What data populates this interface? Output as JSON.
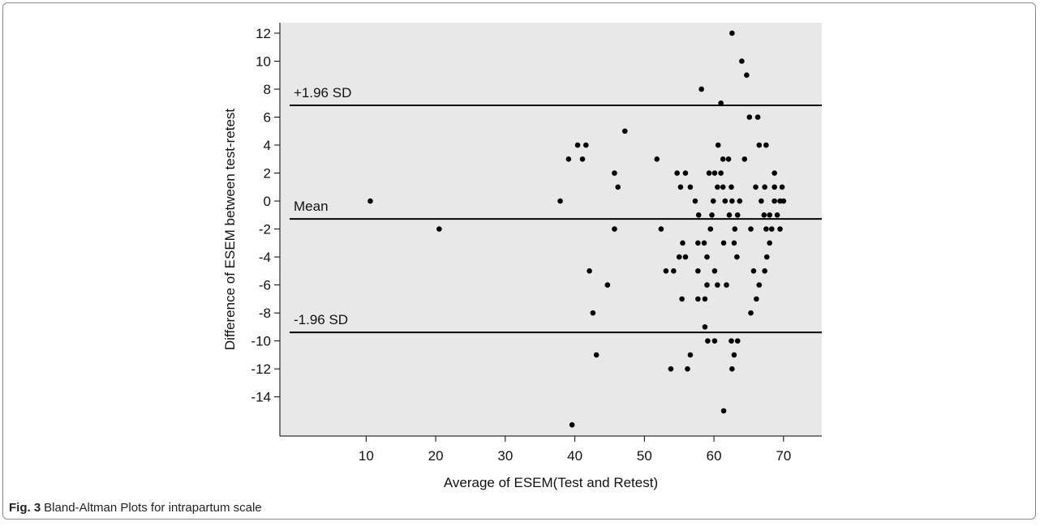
{
  "chart_data": {
    "type": "scatter",
    "ylabel": "Difference of ESEM between test-retest",
    "xlabel": "Average of ESEM(Test and Retest)",
    "xlim": [
      -2.4,
      75.5
    ],
    "ylim": [
      -16.8,
      12.75
    ],
    "xticks": [
      10,
      20,
      30,
      40,
      50,
      60,
      70
    ],
    "yticks": [
      -14,
      -12,
      -10,
      -8,
      -6,
      -4,
      -2,
      0,
      2,
      4,
      6,
      8,
      10,
      12
    ],
    "background": "#e8e8e8",
    "color": "#000000",
    "hlines": [
      {
        "label": "+1.96 SD",
        "value": 6.84
      },
      {
        "label": "Mean",
        "value": -1.28
      },
      {
        "label": "-1.96 SD",
        "value": -9.39
      }
    ],
    "x": [
      10.6,
      20.5,
      37.9,
      39.1,
      40.4,
      41.1,
      41.6,
      39.6,
      42.1,
      42.6,
      43.1,
      44.7,
      45.7,
      46.2,
      45.7,
      47.2,
      51.8,
      52.4,
      53.1,
      54.2,
      53.8,
      56.2,
      54.7,
      55.9,
      55.2,
      56.6,
      55.0,
      55.9,
      55.5,
      55.4,
      57.3,
      57.8,
      57.7,
      57.7,
      57.7,
      56.6,
      58.2,
      58.6,
      58.7,
      59.0,
      59.1,
      58.7,
      59.5,
      59.0,
      60.1,
      59.3,
      60.1,
      60.5,
      59.7,
      59.9,
      60.6,
      60.1,
      60.5,
      61.3,
      61.0,
      61.3,
      62.1,
      61.0,
      61.6,
      62.5,
      61.4,
      61.8,
      62.2,
      62.6,
      61.4,
      62.5,
      63.4,
      62.9,
      63.0,
      63.3,
      63.4,
      63.7,
      62.9,
      62.6,
      62.6,
      64.0,
      64.7,
      64.4,
      65.1,
      66.3,
      65.3,
      65.3,
      66.0,
      65.7,
      66.1,
      66.5,
      67.5,
      66.5,
      66.8,
      67.2,
      67.3,
      67.5,
      67.3,
      67.6,
      68.0,
      68.0,
      68.3,
      68.7,
      68.7,
      68.7,
      69.1,
      69.5,
      69.5,
      69.8,
      70.0
    ],
    "values": [
      0,
      -2,
      0,
      3,
      4,
      3,
      4,
      -16,
      -5,
      -8,
      -11,
      -6,
      2,
      1,
      -2,
      5,
      3,
      -2,
      -5,
      -5,
      -12,
      -12,
      2,
      2,
      1,
      1,
      -4,
      -4,
      -3,
      -7,
      0,
      -1,
      -3,
      -5,
      -7,
      -11,
      8,
      -3,
      -7,
      -4,
      -10,
      -9,
      -2,
      -6,
      -10,
      2,
      2,
      1,
      -1,
      0,
      4,
      -5,
      -6,
      1,
      7,
      3,
      3,
      2,
      0,
      1,
      -3,
      -6,
      -1,
      0,
      -15,
      -10,
      -10,
      -3,
      -2,
      -4,
      -1,
      0,
      -11,
      -12,
      12,
      10,
      9,
      3,
      6,
      6,
      -2,
      -8,
      1,
      -5,
      -7,
      4,
      4,
      -6,
      0,
      -1,
      1,
      -2,
      -5,
      -4,
      -3,
      -1,
      -2,
      0,
      1,
      2,
      -1,
      -2,
      0,
      1,
      0
    ]
  },
  "caption": {
    "label": "Fig. 3",
    "text": "Bland-Altman Plots for intrapartum scale"
  }
}
